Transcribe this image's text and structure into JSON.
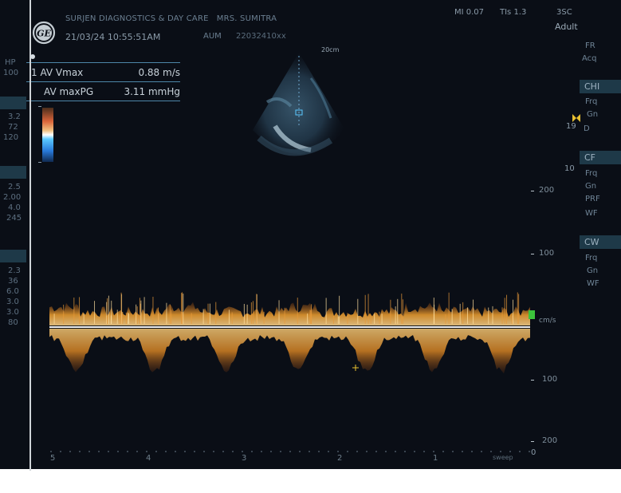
{
  "header": {
    "facility": "SURJEN DIAGNOSTICS & DAY CARE",
    "patient": "MRS. SUMITRA",
    "datetime": "21/03/24 10:55:51AM",
    "mode": "AUM",
    "code": "22032410xx",
    "mi": "MI 0.07",
    "tis": "TIs 1.3",
    "probe": "3SC",
    "preset": "Adult"
  },
  "measurements": [
    {
      "label": "1  AV Vmax",
      "value": "0.88 m/s"
    },
    {
      "label": "AV maxPG",
      "value": "3.11 mmHg"
    }
  ],
  "echo": {
    "depth": "20cm"
  },
  "right_panel": {
    "top_items": [
      "FR",
      "Acq"
    ],
    "chi": {
      "header": "CHI",
      "items": [
        "Frq",
        "Gn",
        "D"
      ]
    },
    "cf": {
      "header": "CF",
      "items": [
        "Frq",
        "Gn",
        "PRF",
        "WF"
      ]
    },
    "cw": {
      "header": "CW",
      "items": [
        "Frq",
        "Gn",
        "WF"
      ]
    },
    "chi_marker": "19",
    "cf_marker": "10"
  },
  "doppler": {
    "velocity_labels": [
      "200",
      "100",
      "100",
      "200"
    ],
    "unit": "cm/s",
    "time_labels": [
      "5",
      "4",
      "3",
      "2",
      "1"
    ],
    "zero": "0",
    "speed": "sweep"
  },
  "colors": {
    "background": "#0a0e16",
    "panel_block": "#1e3948",
    "spectrum": "#f0a030",
    "baseline": "#ffffff",
    "marker": "#3cc43c"
  }
}
